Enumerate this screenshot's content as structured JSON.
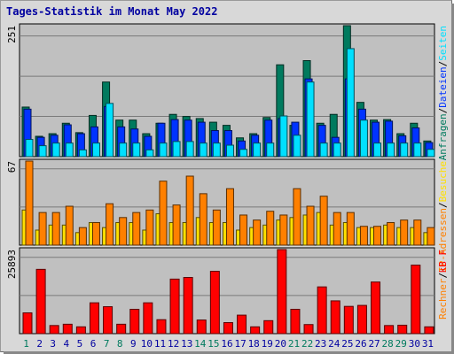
{
  "title": "Tages-Statistik im Monat May 2022",
  "labels": {
    "max_top": "251",
    "max_mid": "67",
    "max_bot": "25893",
    "legend_top": [
      "Anfragen",
      "/",
      "Dateien",
      "/",
      "Seiten"
    ],
    "legend_mid": [
      "Rechner",
      "/",
      "IP-Adressen",
      "/",
      "Besuche"
    ],
    "legend_bot": "kB F"
  },
  "colors": {
    "anfragen": "#007a5e",
    "dateien": "#0033ff",
    "seiten": "#00e0ff",
    "rechner": "#ff8000",
    "besuche": "#ffe000",
    "kbf": "#ff0000",
    "weekday_label": "#007a5e",
    "weekend_label": "#0000a0",
    "background": "#c0c0c0"
  },
  "chart_data": [
    {
      "type": "bar",
      "title": "Tages-Statistik im Monat May 2022",
      "categories": [
        "1",
        "2",
        "3",
        "4",
        "5",
        "6",
        "7",
        "8",
        "9",
        "10",
        "11",
        "12",
        "13",
        "14",
        "15",
        "16",
        "17",
        "18",
        "19",
        "20",
        "21",
        "22",
        "23",
        "24",
        "25",
        "26",
        "27",
        "28",
        "29",
        "30",
        "31"
      ],
      "ylim": [
        0,
        251
      ],
      "series": [
        {
          "name": "Anfragen",
          "values": [
            95,
            39,
            44,
            64,
            46,
            79,
            143,
            70,
            70,
            44,
            64,
            81,
            77,
            73,
            66,
            60,
            36,
            44,
            75,
            176,
            60,
            184,
            64,
            81,
            251,
            104,
            70,
            71,
            44,
            64,
            30
          ]
        },
        {
          "name": "Dateien",
          "values": [
            91,
            37,
            41,
            61,
            44,
            57,
            96,
            57,
            53,
            39,
            64,
            71,
            70,
            66,
            50,
            50,
            30,
            41,
            70,
            73,
            66,
            149,
            60,
            37,
            149,
            91,
            66,
            68,
            40,
            55,
            27
          ]
        },
        {
          "name": "Seiten",
          "values": [
            33,
            21,
            26,
            26,
            13,
            26,
            102,
            26,
            26,
            13,
            26,
            29,
            29,
            26,
            26,
            22,
            14,
            26,
            26,
            78,
            41,
            143,
            26,
            26,
            207,
            70,
            26,
            26,
            26,
            26,
            14
          ]
        }
      ]
    },
    {
      "type": "bar",
      "categories": [
        "1",
        "2",
        "3",
        "4",
        "5",
        "6",
        "7",
        "8",
        "9",
        "10",
        "11",
        "12",
        "13",
        "14",
        "15",
        "16",
        "17",
        "18",
        "19",
        "20",
        "21",
        "22",
        "23",
        "24",
        "25",
        "26",
        "27",
        "28",
        "29",
        "30",
        "31"
      ],
      "ylim": [
        0,
        67
      ],
      "series": [
        {
          "name": "Rechner",
          "values": [
            67,
            26,
            26,
            31,
            14,
            18,
            33,
            22,
            26,
            28,
            51,
            32,
            55,
            41,
            28,
            45,
            24,
            20,
            27,
            24,
            45,
            31,
            39,
            26,
            26,
            15,
            15,
            18,
            20,
            20,
            14
          ]
        },
        {
          "name": "Besuche",
          "values": [
            28,
            12,
            16,
            16,
            10,
            18,
            14,
            18,
            18,
            12,
            25,
            18,
            18,
            22,
            18,
            18,
            12,
            14,
            16,
            20,
            22,
            24,
            26,
            16,
            18,
            14,
            14,
            16,
            14,
            14,
            10
          ]
        }
      ]
    },
    {
      "type": "bar",
      "categories": [
        "1",
        "2",
        "3",
        "4",
        "5",
        "6",
        "7",
        "8",
        "9",
        "10",
        "11",
        "12",
        "13",
        "14",
        "15",
        "16",
        "17",
        "18",
        "19",
        "20",
        "21",
        "22",
        "23",
        "24",
        "25",
        "26",
        "27",
        "28",
        "29",
        "30",
        "31"
      ],
      "ylim": [
        0,
        25893
      ],
      "series": [
        {
          "name": "kB F",
          "values": [
            6400,
            19800,
            2500,
            2900,
            2100,
            9500,
            8300,
            2900,
            7500,
            9500,
            4300,
            16800,
            17300,
            4200,
            19200,
            3400,
            5700,
            2100,
            4000,
            25893,
            7500,
            2800,
            14400,
            10100,
            8400,
            8700,
            15900,
            2500,
            2600,
            21100,
            2100
          ]
        }
      ]
    }
  ]
}
